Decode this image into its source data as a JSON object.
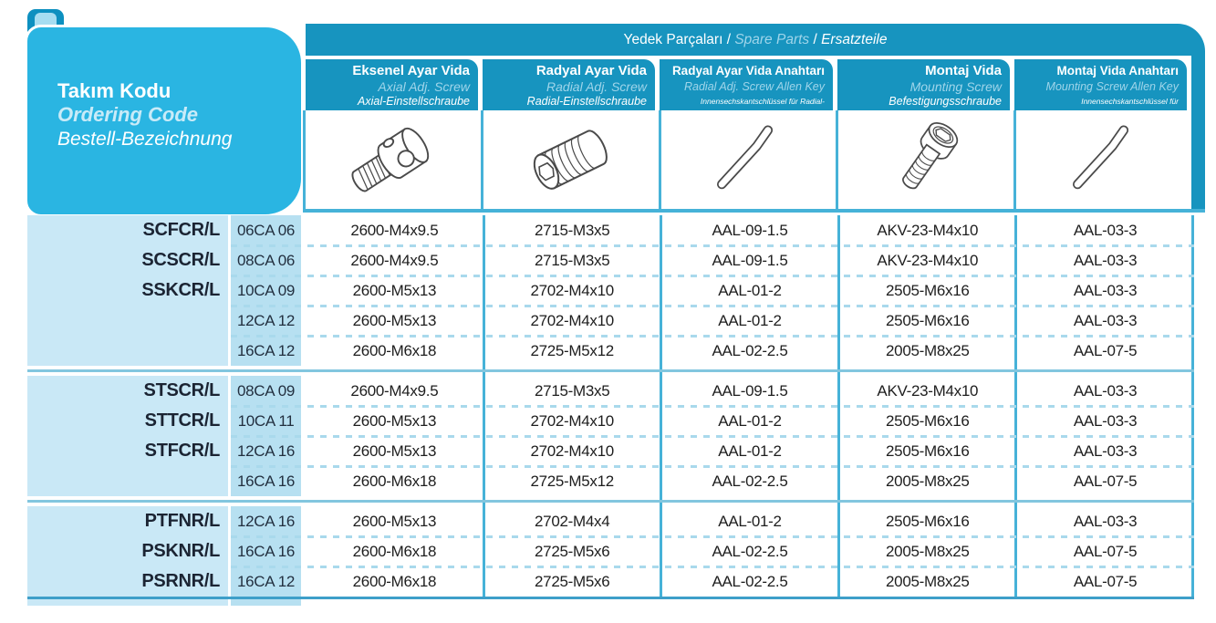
{
  "spare_parts": {
    "tr": "Yedek Parçaları",
    "en": "Spare Parts",
    "de": "Ersatzteile"
  },
  "ordering_code": {
    "tr": "Takım Kodu",
    "en": "Ordering Code",
    "de": "Bestell-Bezeichnung"
  },
  "columns": [
    {
      "tr": "Eksenel Ayar Vida",
      "en": "Axial Adj. Screw",
      "de": "Axial-Einstellschraube",
      "icon": "axial-adjusting-screw-illustration"
    },
    {
      "tr": "Radyal Ayar Vida",
      "en": "Radial Adj. Screw",
      "de": "Radial-Einstellschraube",
      "icon": "radial-set-screw-illustration"
    },
    {
      "tr": "Radyal Ayar Vida Anahtarı",
      "en": "Radial Adj. Screw Allen Key",
      "de": "Innensechskantschlüssel für Radial-Einstellschraube",
      "icon": "allen-key-illustration"
    },
    {
      "tr": "Montaj Vida",
      "en": "Mounting Screw",
      "de": "Befestigungsschraube",
      "icon": "mounting-cap-screw-illustration"
    },
    {
      "tr": "Montaj Vida Anahtarı",
      "en": "Mounting Screw Allen Key",
      "de": "Innensechskantschlüssel für Befestigungsschraube",
      "icon": "allen-key-illustration"
    }
  ],
  "groups": [
    {
      "labels": [
        "SCFCR/L",
        "SCSCR/L",
        "SSKCR/L"
      ],
      "rows": [
        {
          "code": "06CA 06",
          "values": [
            "2600-M4x9.5",
            "2715-M3x5",
            "AAL-09-1.5",
            "AKV-23-M4x10",
            "AAL-03-3"
          ]
        },
        {
          "code": "08CA 06",
          "values": [
            "2600-M4x9.5",
            "2715-M3x5",
            "AAL-09-1.5",
            "AKV-23-M4x10",
            "AAL-03-3"
          ]
        },
        {
          "code": "10CA 09",
          "values": [
            "2600-M5x13",
            "2702-M4x10",
            "AAL-01-2",
            "2505-M6x16",
            "AAL-03-3"
          ]
        },
        {
          "code": "12CA 12",
          "values": [
            "2600-M5x13",
            "2702-M4x10",
            "AAL-01-2",
            "2505-M6x16",
            "AAL-03-3"
          ]
        },
        {
          "code": "16CA 12",
          "values": [
            "2600-M6x18",
            "2725-M5x12",
            "AAL-02-2.5",
            "2005-M8x25",
            "AAL-07-5"
          ]
        }
      ]
    },
    {
      "labels": [
        "STSCR/L",
        "STTCR/L",
        "STFCR/L"
      ],
      "rows": [
        {
          "code": "08CA 09",
          "values": [
            "2600-M4x9.5",
            "2715-M3x5",
            "AAL-09-1.5",
            "AKV-23-M4x10",
            "AAL-03-3"
          ]
        },
        {
          "code": "10CA 11",
          "values": [
            "2600-M5x13",
            "2702-M4x10",
            "AAL-01-2",
            "2505-M6x16",
            "AAL-03-3"
          ]
        },
        {
          "code": "12CA 16",
          "values": [
            "2600-M5x13",
            "2702-M4x10",
            "AAL-01-2",
            "2505-M6x16",
            "AAL-03-3"
          ]
        },
        {
          "code": "16CA 16",
          "values": [
            "2600-M6x18",
            "2725-M5x12",
            "AAL-02-2.5",
            "2005-M8x25",
            "AAL-07-5"
          ]
        }
      ]
    },
    {
      "labels": [
        "PTFNR/L",
        "PSKNR/L",
        "PSRNR/L"
      ],
      "rows": [
        {
          "code": "12CA 16",
          "values": [
            "2600-M5x13",
            "2702-M4x4",
            "AAL-01-2",
            "2505-M6x16",
            "AAL-03-3"
          ]
        },
        {
          "code": "16CA 16",
          "values": [
            "2600-M6x18",
            "2725-M5x6",
            "AAL-02-2.5",
            "2005-M8x25",
            "AAL-07-5"
          ]
        },
        {
          "code": "16CA 12",
          "values": [
            "2600-M6x18",
            "2725-M5x6",
            "AAL-02-2.5",
            "2005-M8x25",
            "AAL-07-5"
          ]
        }
      ]
    }
  ],
  "colors": {
    "band_teal": "#1794BF",
    "block_cyan": "#2AB5E2",
    "label_column_bg": "#C9E8F6",
    "code_column_bg": "#B7E0F1",
    "grid_border": "#46B2D8",
    "group_separator": "#82C6DF",
    "dashed_separator": "#A9D9EC",
    "header_subtext": "#9FD5EA",
    "text_dark": "#1B2433"
  }
}
